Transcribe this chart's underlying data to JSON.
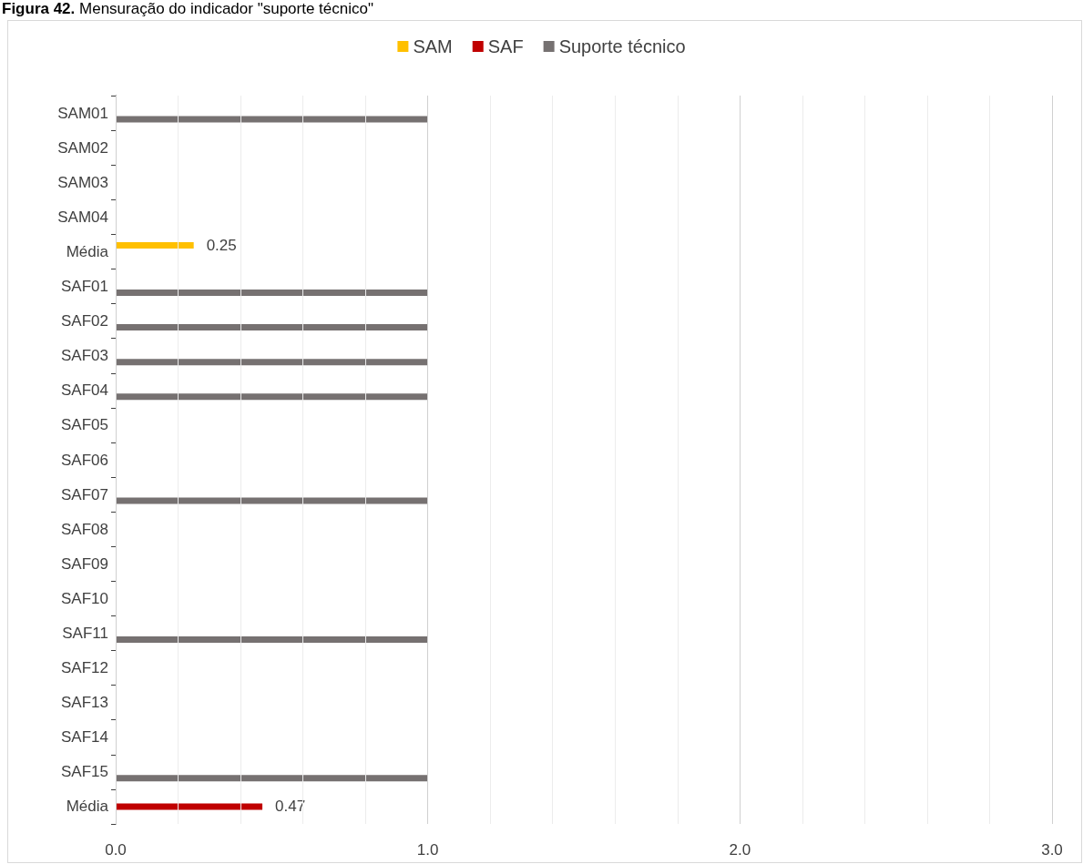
{
  "chart_data": {
    "type": "bar",
    "orientation": "horizontal",
    "title": "Figura 42. Mensuração do indicador \"suporte técnico\"",
    "categories": [
      "SAM01",
      "SAM02",
      "SAM03",
      "SAM04",
      "Média",
      "SAF01",
      "SAF02",
      "SAF03",
      "SAF04",
      "SAF05",
      "SAF06",
      "SAF07",
      "SAF08",
      "SAF09",
      "SAF10",
      "SAF11",
      "SAF12",
      "SAF13",
      "SAF14",
      "SAF15",
      "Média"
    ],
    "series": [
      {
        "name": "SAM",
        "color": "#ffc000",
        "values": [
          null,
          null,
          null,
          null,
          0.25,
          null,
          null,
          null,
          null,
          null,
          null,
          null,
          null,
          null,
          null,
          null,
          null,
          null,
          null,
          null,
          null
        ],
        "value_labels": [
          null,
          null,
          null,
          null,
          "0.25",
          null,
          null,
          null,
          null,
          null,
          null,
          null,
          null,
          null,
          null,
          null,
          null,
          null,
          null,
          null,
          null
        ]
      },
      {
        "name": "SAF",
        "color": "#c00000",
        "values": [
          null,
          null,
          null,
          null,
          null,
          null,
          null,
          null,
          null,
          null,
          null,
          null,
          null,
          null,
          null,
          null,
          null,
          null,
          null,
          null,
          0.47
        ],
        "value_labels": [
          null,
          null,
          null,
          null,
          null,
          null,
          null,
          null,
          null,
          null,
          null,
          null,
          null,
          null,
          null,
          null,
          null,
          null,
          null,
          null,
          "0.47"
        ]
      },
      {
        "name": "Suporte técnico",
        "color": "#767171",
        "values": [
          1,
          0,
          0,
          0,
          null,
          1,
          1,
          1,
          1,
          0,
          0,
          1,
          0,
          0,
          0,
          1,
          0,
          0,
          0,
          1,
          null
        ]
      }
    ],
    "xlim": [
      0,
      3
    ],
    "xticks": [
      {
        "value": 0,
        "label": "0.0"
      },
      {
        "value": 0.2,
        "label": null
      },
      {
        "value": 0.4,
        "label": null
      },
      {
        "value": 0.6,
        "label": null
      },
      {
        "value": 0.8,
        "label": null
      },
      {
        "value": 1,
        "label": "1.0"
      },
      {
        "value": 1.2,
        "label": null
      },
      {
        "value": 1.4,
        "label": null
      },
      {
        "value": 1.6,
        "label": null
      },
      {
        "value": 1.8,
        "label": null
      },
      {
        "value": 2,
        "label": "2.0"
      },
      {
        "value": 2.2,
        "label": null
      },
      {
        "value": 2.4,
        "label": null
      },
      {
        "value": 2.6,
        "label": null
      },
      {
        "value": 2.8,
        "label": null
      },
      {
        "value": 3,
        "label": "3.0"
      }
    ],
    "grid": "x",
    "legend": "top"
  }
}
